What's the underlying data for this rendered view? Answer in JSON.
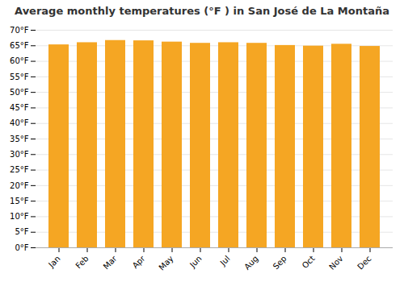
{
  "chart_data": {
    "type": "bar",
    "title": "Average monthly temperatures (°F ) in San José de La Montaña",
    "categories": [
      "Jan",
      "Feb",
      "Mar",
      "Apr",
      "May",
      "Jun",
      "Jul",
      "Aug",
      "Sep",
      "Oct",
      "Nov",
      "Dec"
    ],
    "values": [
      65.3,
      66.0,
      66.7,
      66.6,
      66.2,
      65.8,
      66.0,
      65.8,
      65.1,
      64.9,
      65.5,
      64.8
    ],
    "color": "#F5A623",
    "ylim": [
      0,
      70
    ],
    "yticks": [
      {
        "value": 0,
        "label": "0°F"
      },
      {
        "value": 5,
        "label": "5°F"
      },
      {
        "value": 10,
        "label": "10°F"
      },
      {
        "value": 15,
        "label": "15°F"
      },
      {
        "value": 20,
        "label": "20°F"
      },
      {
        "value": 25,
        "label": "25°F"
      },
      {
        "value": 30,
        "label": "30°F"
      },
      {
        "value": 35,
        "label": "35°F"
      },
      {
        "value": 40,
        "label": "40°F"
      },
      {
        "value": 45,
        "label": "45°F"
      },
      {
        "value": 50,
        "label": "50°F"
      },
      {
        "value": 55,
        "label": "55°F"
      },
      {
        "value": 60,
        "label": "60°F"
      },
      {
        "value": 65,
        "label": "65°F"
      },
      {
        "value": 70,
        "label": "70°F"
      }
    ],
    "grid": true
  }
}
